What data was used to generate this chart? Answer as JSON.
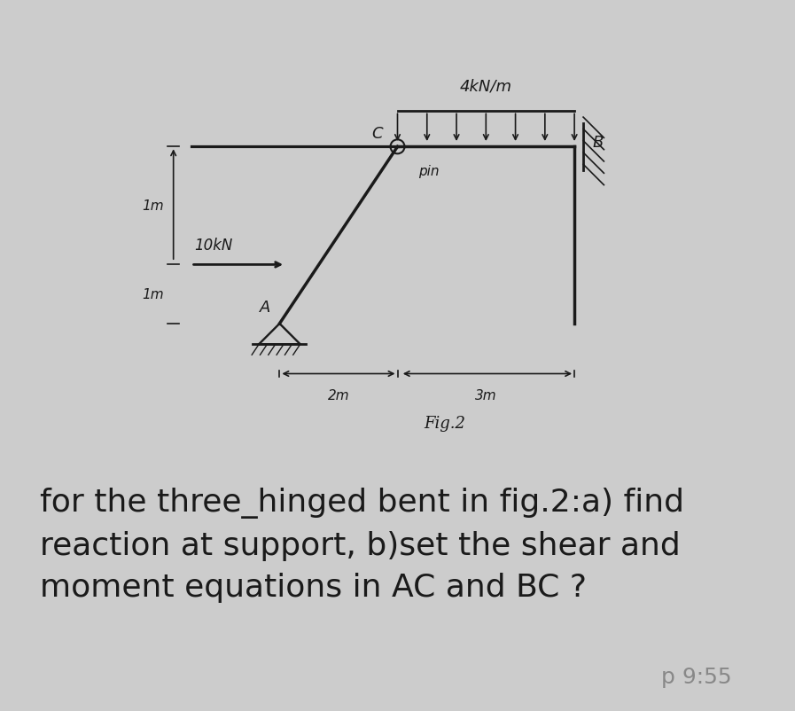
{
  "bg_top": "#d8d8d8",
  "bg_bottom": "#ffffff",
  "bg_diagram": "#e8e8e8",
  "line_color": "#1a1a1a",
  "text_color": "#1a1a1a",
  "fig_label": "Fig.2",
  "load_label": "4kN/m",
  "force_label": "10kN",
  "pin_label": "pin",
  "label_A": "A",
  "label_B": "B",
  "label_C": "C",
  "dim_1m_top": "1m",
  "dim_1m_bot": "1m",
  "dim_2m": "2m",
  "dim_3m": "3m",
  "question_text": "for the three_hinged bent in fig.2:a) find\nreaction at support, b)set the shear and\nmoment equations in AC and BC ?",
  "time_text": "p 9:55",
  "question_fontsize": 26,
  "time_fontsize": 18
}
